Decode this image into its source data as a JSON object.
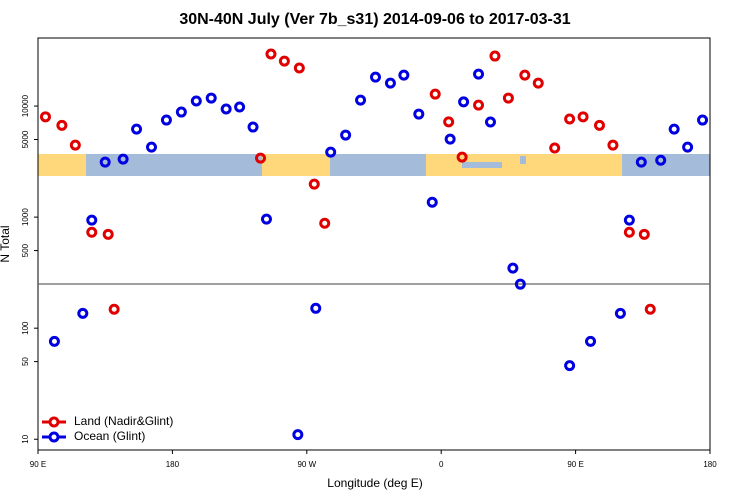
{
  "chart_data": {
    "type": "scatter",
    "title": "30N-40N July (Ver 7b_s31)   2014-09-06 to 2017-03-31",
    "x_label": "Longitude (deg E)",
    "y_label": "N Total",
    "log_y": true,
    "legend": "bottom-left",
    "reference_line": 250,
    "xlim": [
      90,
      540
    ],
    "ylim": [
      8,
      41000
    ],
    "xticks": [
      {
        "value": 90,
        "label": "90 E"
      },
      {
        "value": 180,
        "label": "180"
      },
      {
        "value": 270,
        "label": "90 W"
      },
      {
        "value": 360,
        "label": "0"
      },
      {
        "value": 450,
        "label": "90 E"
      },
      {
        "value": 540,
        "label": "180"
      }
    ],
    "yticks": [
      10,
      50,
      100,
      500,
      1000,
      5000,
      10000
    ],
    "series": [
      {
        "name": "Land (Nadir&Glint)",
        "color": "#e00000",
        "x": [
          95,
          106,
          115,
          126,
          137,
          141,
          239,
          246,
          255,
          265,
          275,
          282,
          356,
          365,
          374,
          385,
          396,
          405,
          416,
          425,
          436,
          446,
          455,
          466,
          475,
          486,
          496,
          500
        ],
        "values": [
          8000,
          6700,
          4450,
          730,
          700,
          148,
          3400,
          29400,
          25400,
          22000,
          1980,
          880,
          12800,
          7200,
          3470,
          10200,
          28200,
          11800,
          19000,
          16100,
          4190,
          7640,
          8000,
          6700,
          4450,
          730,
          700,
          148
        ]
      },
      {
        "name": "Ocean (Glint)",
        "color": "#0000e0",
        "x": [
          101,
          120,
          126,
          135,
          147,
          156,
          166,
          176,
          186,
          196,
          206,
          216,
          225,
          234,
          243,
          264,
          276,
          286,
          296,
          306,
          316,
          326,
          335,
          345,
          354,
          366,
          375,
          385,
          393,
          408,
          413,
          446,
          460,
          480,
          486,
          494,
          507,
          516,
          525,
          535
        ],
        "values": [
          76,
          136,
          940,
          3130,
          3330,
          6200,
          4270,
          7480,
          8830,
          11100,
          11800,
          9400,
          9800,
          6470,
          960,
          11,
          151,
          3850,
          5480,
          11300,
          18200,
          16100,
          19000,
          8470,
          1360,
          5040,
          10900,
          19400,
          7180,
          347,
          249,
          46,
          76,
          136,
          940,
          3130,
          3250,
          6200,
          4270,
          7480
        ]
      }
    ]
  }
}
